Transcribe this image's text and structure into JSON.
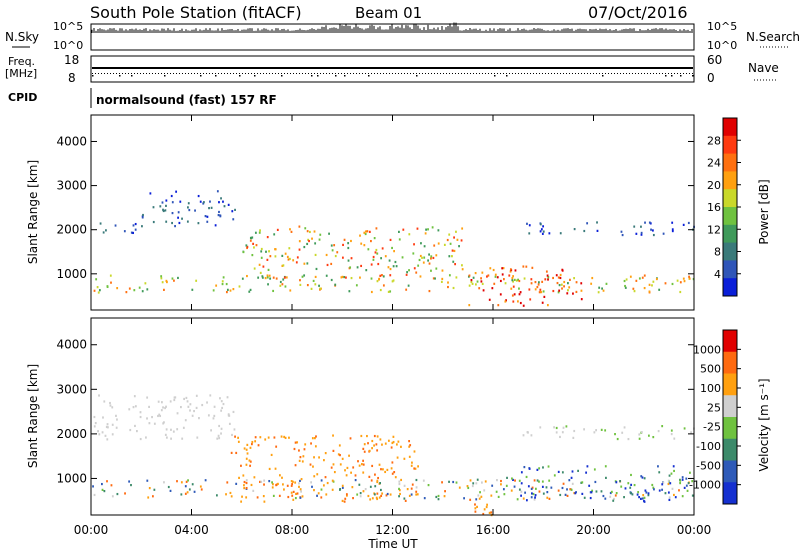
{
  "header": {
    "station": "South Pole Station (fitACF)",
    "beam": "Beam 01",
    "date": "07/Oct/2016"
  },
  "summary_panels": {
    "nsky_label": "N.Sky",
    "nsearch_label": "N.Search",
    "nsky_ticks": [
      "10^5",
      "10^0"
    ],
    "nsearch_ticks": [
      "10^5",
      "10^0"
    ],
    "freq_label_line1": "Freq.",
    "freq_label_line2": "[MHz]",
    "freq_ticks": [
      "18",
      "8"
    ],
    "nave_label": "Nave",
    "nave_ticks": [
      "60",
      "0"
    ],
    "cpid_label": "CPID",
    "cpid_value": "normalsound (fast) 157 RF"
  },
  "chart_data": [
    {
      "type": "heatmap",
      "name": "power",
      "ylabel": "Slant Range [km]",
      "xlabel": "",
      "ylim": [
        180,
        4600
      ],
      "yticks": [
        "1000",
        "2000",
        "3000",
        "4000"
      ],
      "xlim_hours": [
        0,
        24
      ],
      "colorbar": {
        "label": "Power [dB]",
        "ticks": [
          "4",
          "8",
          "12",
          "16",
          "20",
          "24",
          "28"
        ],
        "colors": [
          "#0a1fd8",
          "#2f55b8",
          "#3a7a7a",
          "#3f9a5a",
          "#6fc23f",
          "#c9d82a",
          "#ffa010",
          "#ff7010",
          "#ff3a10",
          "#e00000"
        ]
      },
      "scatter_regions": [
        {
          "t": [
            0.0,
            2.0
          ],
          "r": [
            1900,
            2200
          ],
          "level": "low"
        },
        {
          "t": [
            2.0,
            5.8
          ],
          "r": [
            2100,
            2900
          ],
          "level": "low"
        },
        {
          "t": [
            0.0,
            24.0
          ],
          "r": [
            600,
            1000
          ],
          "level": "mid"
        },
        {
          "t": [
            6.0,
            15.0
          ],
          "r": [
            900,
            2100
          ],
          "level": "mid-high"
        },
        {
          "t": [
            15.0,
            19.5
          ],
          "r": [
            300,
            1200
          ],
          "level": "high"
        },
        {
          "t": [
            17.0,
            24.0
          ],
          "r": [
            1900,
            2200
          ],
          "level": "low"
        }
      ]
    },
    {
      "type": "heatmap",
      "name": "velocity",
      "ylabel": "Slant Range [km]",
      "xlabel": "Time UT",
      "ylim": [
        180,
        4600
      ],
      "yticks": [
        "1000",
        "2000",
        "3000",
        "4000"
      ],
      "xticks": [
        "00:00",
        "04:00",
        "08:00",
        "12:00",
        "16:00",
        "20:00",
        "00:00"
      ],
      "colorbar": {
        "label": "Velocity [m s⁻¹]",
        "ticks": [
          "1000",
          "500",
          "100",
          "25",
          "-25",
          "-100",
          "-500",
          "-1000"
        ],
        "colors": [
          "#1530d0",
          "#2e5ab8",
          "#3c8a6a",
          "#6fc23f",
          "#cfcfcf",
          "#ffa010",
          "#ff6a10",
          "#e00000"
        ]
      },
      "scatter_regions": [
        {
          "t": [
            0.0,
            5.8
          ],
          "r": [
            1900,
            2900
          ],
          "level": "zero"
        },
        {
          "t": [
            5.5,
            13.0
          ],
          "r": [
            500,
            2000
          ],
          "level": "neg-mid"
        },
        {
          "t": [
            0.0,
            24.0
          ],
          "r": [
            550,
            1000
          ],
          "level": "mixed"
        },
        {
          "t": [
            15.0,
            16.5
          ],
          "r": [
            200,
            700
          ],
          "level": "neg-mid"
        },
        {
          "t": [
            16.5,
            24.0
          ],
          "r": [
            500,
            1300
          ],
          "level": "pos-high"
        },
        {
          "t": [
            17.0,
            24.0
          ],
          "r": [
            1900,
            2200
          ],
          "level": "zero-pos"
        }
      ]
    }
  ]
}
